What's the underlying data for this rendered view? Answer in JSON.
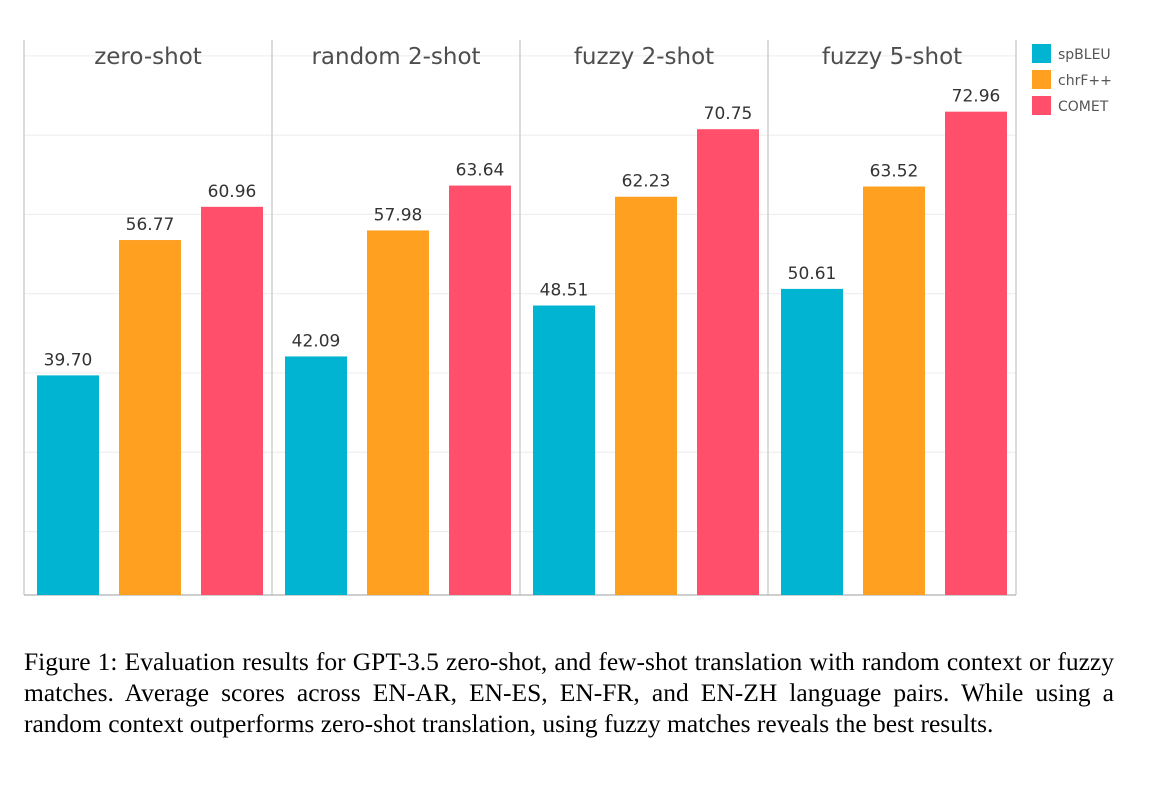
{
  "chart_data": {
    "type": "bar",
    "facets": [
      "zero-shot",
      "random 2-shot",
      "fuzzy 2-shot",
      "fuzzy 5-shot"
    ],
    "series": [
      {
        "name": "spBLEU",
        "color": "#00b4d2",
        "values": [
          39.7,
          42.09,
          48.51,
          50.61
        ],
        "labels": [
          "39.70",
          "42.09",
          "48.51",
          "50.61"
        ]
      },
      {
        "name": "chrF++",
        "color": "#ffa020",
        "values": [
          56.77,
          57.98,
          62.23,
          63.52
        ],
        "labels": [
          "56.77",
          "57.98",
          "62.23",
          "63.52"
        ]
      },
      {
        "name": "COMET",
        "color": "#ff4f6a",
        "values": [
          60.96,
          63.64,
          70.75,
          72.96
        ],
        "labels": [
          "60.96",
          "63.64",
          "70.75",
          "72.96"
        ]
      }
    ],
    "ylim": [
      12,
      82
    ],
    "grid": true,
    "legend_position": "top-right"
  },
  "caption": "Figure 1: Evaluation results for GPT-3.5 zero-shot, and few-shot translation with random context or fuzzy matches. Average scores across EN-AR, EN-ES, EN-FR, and EN-ZH language pairs. While using a random context outperforms zero-shot translation, using fuzzy matches reveals the best results."
}
